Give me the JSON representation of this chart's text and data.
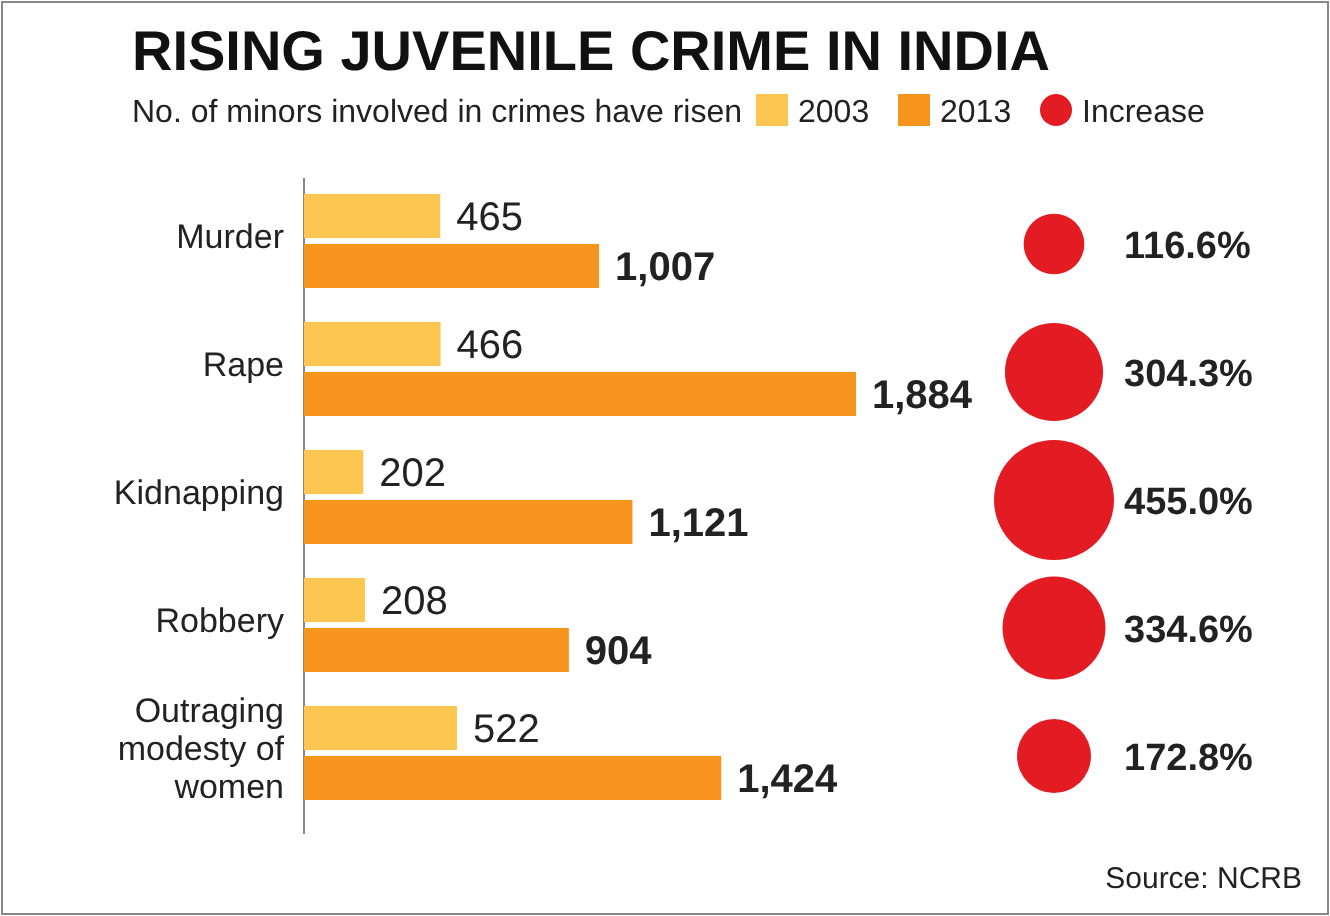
{
  "chart_data": {
    "type": "bar",
    "orientation": "horizontal",
    "title": "RISING JUVENILE CRIME IN INDIA",
    "subtitle": "No. of minors involved in crimes have risen",
    "categories": [
      "Murder",
      "Rape",
      "Kidnapping",
      "Robbery",
      "Outraging modesty of women"
    ],
    "series": [
      {
        "name": "2003",
        "color": "#fcc650",
        "values": [
          465,
          466,
          202,
          208,
          522
        ],
        "value_labels": [
          "465",
          "466",
          "202",
          "208",
          "522"
        ]
      },
      {
        "name": "2013",
        "color": "#f7941d",
        "values": [
          1007,
          1884,
          1121,
          904,
          1424
        ],
        "value_labels": [
          "1,007",
          "1,884",
          "1,121",
          "904",
          "1,424"
        ]
      }
    ],
    "legend": "top",
    "annotations": [
      "Increase",
      "116.6%",
      "304.3%",
      "455.0%",
      "334.6%",
      "172.8%",
      "Source: NCRB"
    ]
  }
}
